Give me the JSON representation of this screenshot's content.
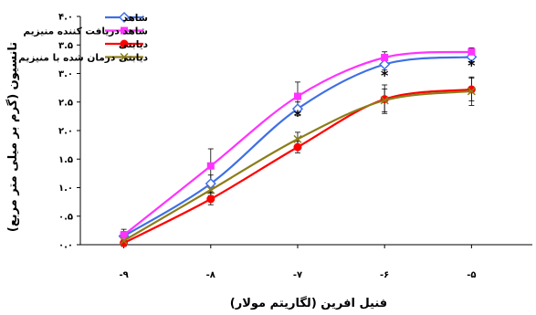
{
  "chart_data": {
    "type": "line",
    "xlabel": "فنیل افرین (لگاریتم مولار)",
    "ylabel": "تانسیون (گرم بر میلی متر مربع)",
    "x": [
      -9,
      -8,
      -7,
      -6,
      -5
    ],
    "x_tick_labels": [
      "-۹",
      "-۸",
      "-۷",
      "-۶",
      "-۵"
    ],
    "xlim": [
      -9.5,
      -4.3
    ],
    "ylim": [
      0,
      4.0
    ],
    "y_ticks": [
      0,
      0.5,
      1.0,
      1.5,
      2.0,
      2.5,
      3.0,
      3.5,
      4.0
    ],
    "y_tick_labels": [
      "۰.۰",
      "۰.۵",
      "۱.۰",
      "۱.۵",
      "۲.۰",
      "۲.۵",
      "۳.۰",
      "۳.۵",
      "۴.۰"
    ],
    "series": [
      {
        "name": "شاهد",
        "color": "#3f6fe6",
        "marker": "diamond",
        "values": [
          0.15,
          1.07,
          2.38,
          3.16,
          3.29
        ],
        "errors": [
          0.08,
          0.15,
          0.12,
          0.1,
          0.08
        ]
      },
      {
        "name": "شاهد دریافت کننده منیزیم",
        "color": "#ff33ff",
        "marker": "square",
        "values": [
          0.17,
          1.38,
          2.6,
          3.28,
          3.38
        ],
        "errors": [
          0.1,
          0.3,
          0.25,
          0.1,
          0.07
        ]
      },
      {
        "name": "دیابتی",
        "color": "#ff0000",
        "marker": "circle",
        "values": [
          0.03,
          0.8,
          1.71,
          2.55,
          2.72
        ],
        "errors": [
          0.06,
          0.1,
          0.1,
          0.25,
          0.2
        ]
      },
      {
        "name": "دیابتی درمان شده با منیزیم",
        "color": "#8c7d1a",
        "marker": "x",
        "values": [
          0.07,
          0.96,
          1.85,
          2.53,
          2.69
        ],
        "errors": [
          0.06,
          0.1,
          0.12,
          0.2,
          0.25
        ]
      }
    ],
    "annotations": [
      {
        "text": "*",
        "x": -7,
        "y": 2.27
      },
      {
        "text": "*",
        "x": -6,
        "y": 2.98
      },
      {
        "text": "*",
        "x": -5,
        "y": 3.15
      }
    ],
    "legend_position": "top-left",
    "grid": false
  }
}
